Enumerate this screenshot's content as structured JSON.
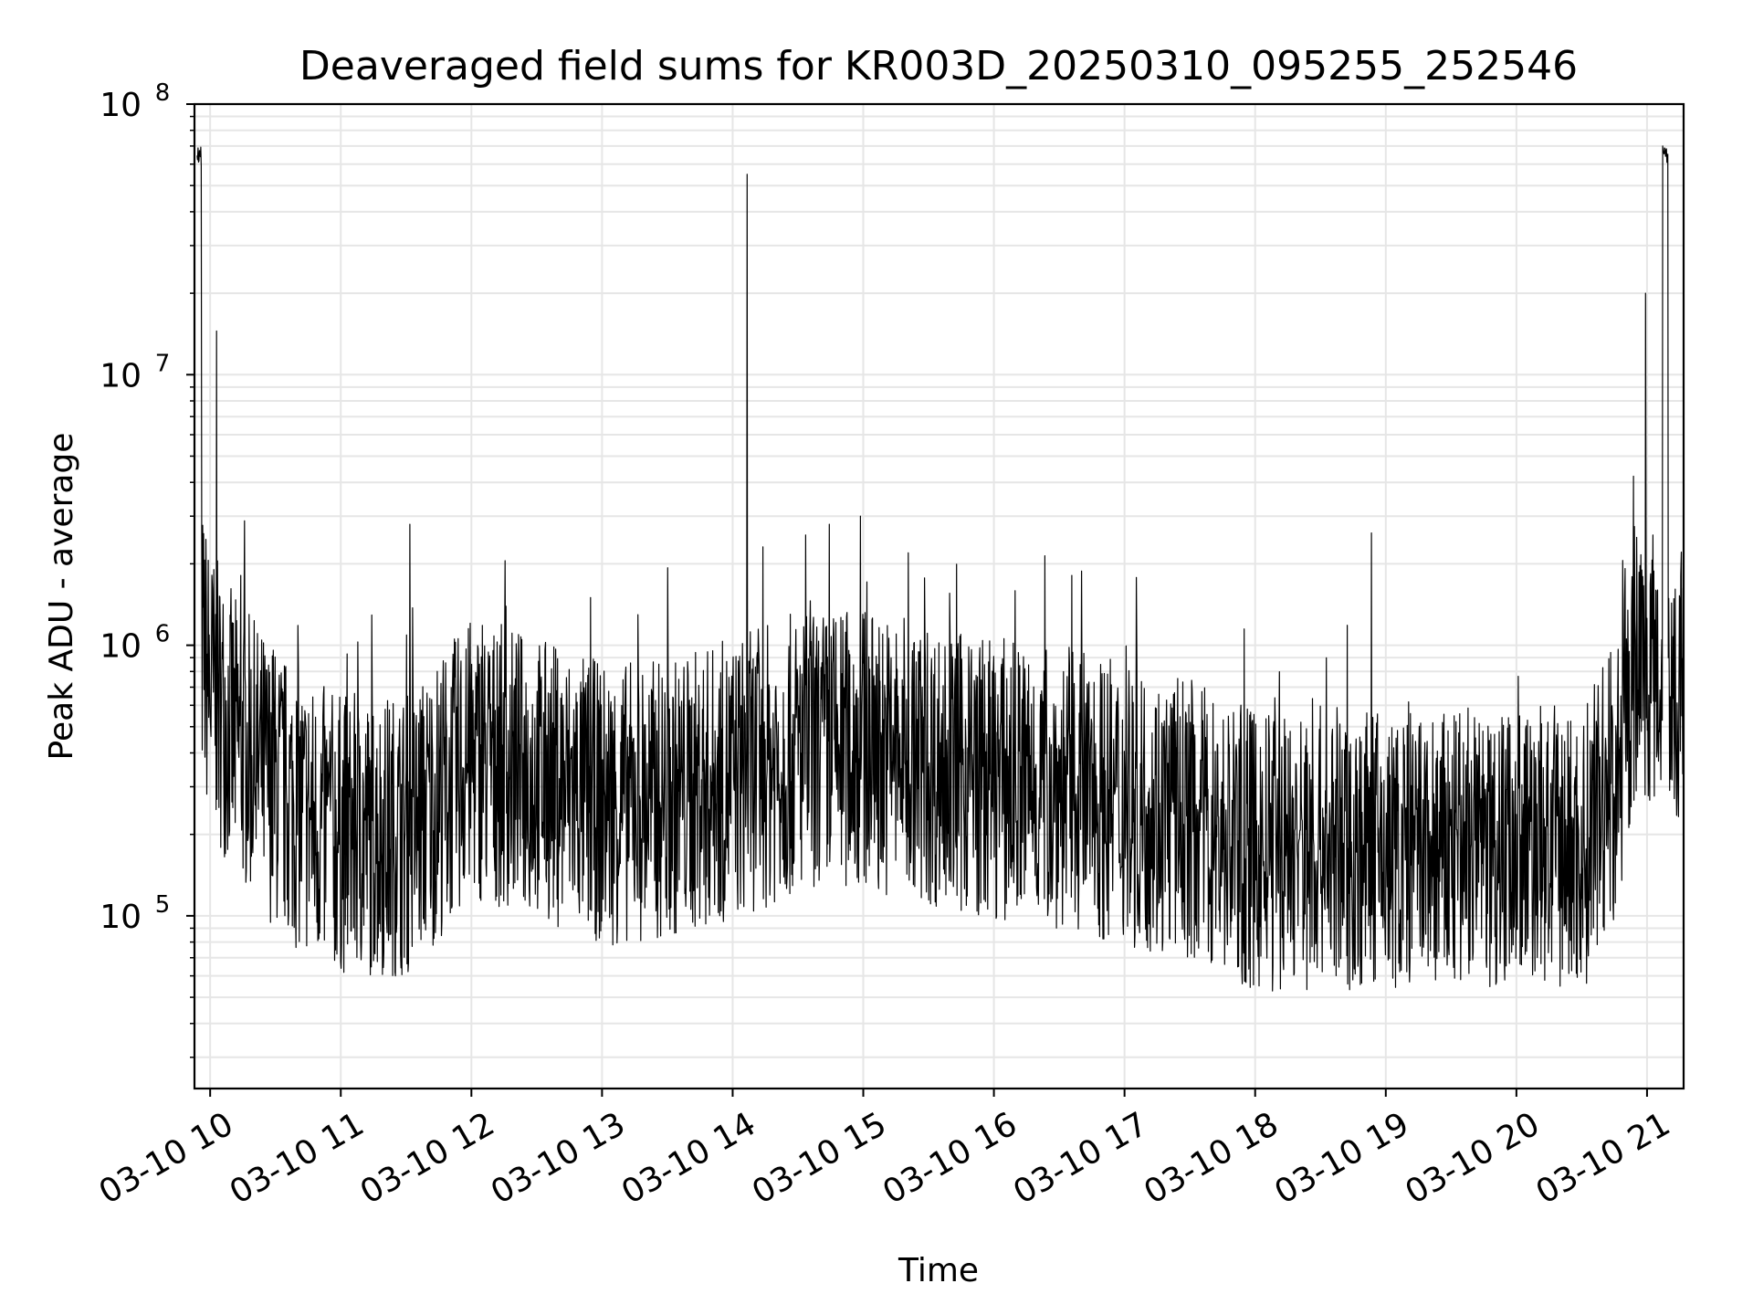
{
  "chart_data": {
    "type": "line",
    "title": "Deaveraged field sums for KR003D_20250310_095255_252546",
    "xlabel": "Time",
    "ylabel": "Peak ADU - average",
    "yscale": "log",
    "ylim": [
      23000,
      100000000
    ],
    "xlim_hours": [
      9.88,
      21.28
    ],
    "grid": true,
    "x_ticks": [
      {
        "label": "03-10 10",
        "hour": 10
      },
      {
        "label": "03-10 11",
        "hour": 11
      },
      {
        "label": "03-10 12",
        "hour": 12
      },
      {
        "label": "03-10 13",
        "hour": 13
      },
      {
        "label": "03-10 14",
        "hour": 14
      },
      {
        "label": "03-10 15",
        "hour": 15
      },
      {
        "label": "03-10 16",
        "hour": 16
      },
      {
        "label": "03-10 17",
        "hour": 17
      },
      {
        "label": "03-10 18",
        "hour": 18
      },
      {
        "label": "03-10 19",
        "hour": 19
      },
      {
        "label": "03-10 20",
        "hour": 20
      },
      {
        "label": "03-10 21",
        "hour": 21
      }
    ],
    "y_ticks": [
      {
        "base": "10",
        "exp": "5",
        "value": 100000
      },
      {
        "base": "10",
        "exp": "6",
        "value": 1000000
      },
      {
        "base": "10",
        "exp": "7",
        "value": 10000000
      },
      {
        "base": "10",
        "exp": "8",
        "value": 100000000
      }
    ],
    "series": [
      {
        "name": "Peak ADU - average",
        "color": "#000000",
        "envelope_hours": [
          9.9,
          10.0,
          10.2,
          10.5,
          10.8,
          11.0,
          11.5,
          12.0,
          12.5,
          13.0,
          13.5,
          14.0,
          14.5,
          15.0,
          15.5,
          16.0,
          16.5,
          17.0,
          17.5,
          18.0,
          18.5,
          19.0,
          19.5,
          20.0,
          20.5,
          20.8,
          20.9,
          21.0,
          21.1,
          21.28
        ],
        "envelope_center": [
          1300000,
          700000,
          450000,
          300000,
          220000,
          200000,
          200000,
          380000,
          330000,
          260000,
          270000,
          320000,
          400000,
          420000,
          360000,
          320000,
          300000,
          260000,
          230000,
          170000,
          180000,
          170000,
          170000,
          190000,
          170000,
          350000,
          850000,
          900000,
          800000,
          700000
        ],
        "spikes": [
          {
            "hour": 9.93,
            "value": 70000000
          },
          {
            "hour": 10.05,
            "value": 14500000
          },
          {
            "hour": 11.53,
            "value": 2800000
          },
          {
            "hour": 14.11,
            "value": 55000000
          },
          {
            "hour": 14.74,
            "value": 2800000
          },
          {
            "hour": 14.98,
            "value": 3000000
          },
          {
            "hour": 18.89,
            "value": 2600000
          },
          {
            "hour": 20.99,
            "value": 20000000
          },
          {
            "hour": 21.12,
            "value": 70000000
          }
        ]
      }
    ]
  }
}
